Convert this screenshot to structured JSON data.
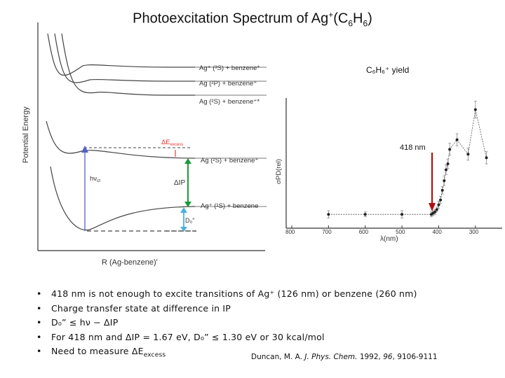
{
  "slide": {
    "title_main": "Photoexcitation Spectrum of Ag",
    "title_sup": "+",
    "title_mid": "(C",
    "title_sub1": "6",
    "title_h": "H",
    "title_sub2": "6",
    "title_end": ")"
  },
  "energy_diagram": {
    "ylabel": "Potential Energy",
    "xlabel": "R (Ag-benzene)'",
    "states": [
      {
        "label": "Ag⁺ (³S) + benzene*"
      },
      {
        "label": "Ag (²P) + benzene⁺"
      },
      {
        "label": "Ag (²S) + benzene⁺*"
      },
      {
        "label": "Ag (²S) + benzene⁺"
      },
      {
        "label": "Ag⁺ (¹S) + benzene"
      }
    ],
    "annotations": {
      "delta_e_excess": "ΔE",
      "delta_e_sub": "excess",
      "h_nu": "hν",
      "h_nu_sub": "ct",
      "delta_ip": "ΔIP",
      "d0": "D₀\""
    },
    "colors": {
      "hnu_arrow": "#5560c8",
      "delta_ip_arrow": "#1a9a3a",
      "d0_arrow": "#4ab0e0",
      "delta_e_text": "#e03030",
      "dashed": "#444444"
    }
  },
  "chart_data": {
    "type": "scatter",
    "title": "C₆H₆⁺ yield",
    "xlabel": "λ(nm)",
    "ylabel": "σPD(rel)",
    "x_ticks": [
      800,
      700,
      600,
      500,
      400,
      300
    ],
    "xlim": [
      800,
      250
    ],
    "ylim": [
      0,
      1.0
    ],
    "series": [
      {
        "x": [
          700,
          600,
          500,
          420,
          415,
          410,
          405,
          400,
          395,
          390,
          385,
          380,
          375,
          370,
          350,
          320,
          300,
          270
        ],
        "y": [
          0.08,
          0.08,
          0.08,
          0.08,
          0.09,
          0.1,
          0.12,
          0.16,
          0.2,
          0.28,
          0.36,
          0.45,
          0.5,
          0.62,
          0.7,
          0.58,
          0.95,
          0.55
        ],
        "error": [
          0.03,
          0.02,
          0.03,
          0.02,
          0.02,
          0.02,
          0.02,
          0.03,
          0.03,
          0.03,
          0.04,
          0.04,
          0.04,
          0.05,
          0.05,
          0.05,
          0.07,
          0.05
        ]
      }
    ],
    "marker_annotation": {
      "label": "418 nm",
      "x": 418,
      "color": "#b01010"
    }
  },
  "bullets": [
    "418 nm is not enough to excite transitions of Ag⁺ (126 nm) or benzene (260 nm)",
    "Charge transfer state at difference in IP",
    "D₀” ≤ hν − ΔIP",
    "For 418 nm and ΔIP = 1.67 eV, D₀” ≤ 1.30 eV or 30 kcal/mol",
    "Need to measure ΔE"
  ],
  "bullet_sub": "excess",
  "citation": {
    "authors": "Duncan, M. A. ",
    "journal": "J. Phys. Chem.",
    "year": " 1992, ",
    "volume": "96",
    "pages": ", 9106-9111"
  }
}
